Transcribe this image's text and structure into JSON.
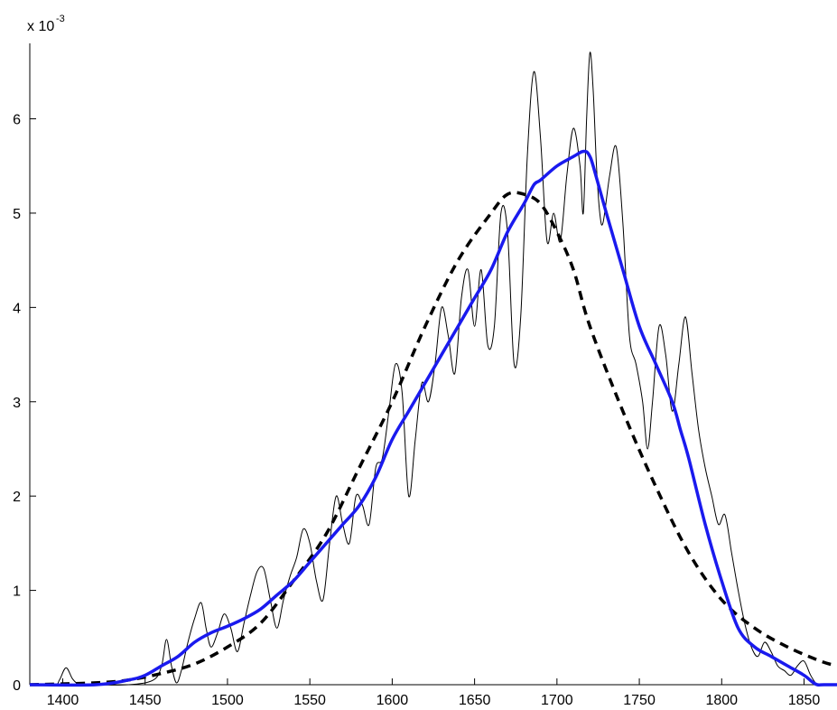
{
  "chart_data": {
    "type": "line",
    "title": "",
    "xlabel": "",
    "ylabel": "",
    "xlim": [
      1380,
      1870
    ],
    "ylim": [
      0,
      0.0068
    ],
    "y_exponent_label": {
      "base": "x 10",
      "exponent": "-3"
    },
    "x_ticks": [
      1400,
      1450,
      1500,
      1550,
      1600,
      1650,
      1700,
      1750,
      1800,
      1850
    ],
    "x_tick_labels": [
      "1400",
      "1450",
      "1500",
      "1550",
      "1600",
      "1650",
      "1700",
      "1750",
      "1800",
      "1850"
    ],
    "y_ticks": [
      0,
      0.001,
      0.002,
      0.003,
      0.004,
      0.005,
      0.006
    ],
    "y_tick_labels": [
      "0",
      "1",
      "2",
      "3",
      "4",
      "5",
      "6"
    ],
    "grid": false,
    "legend": "none",
    "series": [
      {
        "style": "thin-solid",
        "color": "#000000",
        "x": [
          1380,
          1395,
          1398,
          1402,
          1406,
          1410,
          1415,
          1440,
          1455,
          1460,
          1463,
          1466,
          1469,
          1472,
          1476,
          1480,
          1484,
          1487,
          1490,
          1494,
          1498,
          1502,
          1506,
          1510,
          1514,
          1518,
          1522,
          1526,
          1530,
          1534,
          1538,
          1542,
          1546,
          1550,
          1554,
          1558,
          1562,
          1566,
          1570,
          1574,
          1578,
          1582,
          1586,
          1590,
          1594,
          1598,
          1602,
          1606,
          1610,
          1614,
          1618,
          1622,
          1626,
          1630,
          1634,
          1638,
          1642,
          1646,
          1650,
          1654,
          1658,
          1662,
          1666,
          1670,
          1674,
          1678,
          1682,
          1686,
          1690,
          1694,
          1698,
          1702,
          1706,
          1710,
          1714,
          1716,
          1718,
          1720,
          1722,
          1724,
          1726,
          1728,
          1732,
          1736,
          1740,
          1744,
          1748,
          1752,
          1755,
          1758,
          1762,
          1766,
          1770,
          1774,
          1778,
          1782,
          1786,
          1790,
          1794,
          1798,
          1802,
          1806,
          1810,
          1814,
          1818,
          1822,
          1826,
          1830,
          1834,
          1838,
          1842,
          1846,
          1850,
          1854,
          1858,
          1862,
          1870
        ],
        "y": [
          0,
          0,
          5e-05,
          0.00018,
          6e-05,
          0,
          0,
          0,
          5e-05,
          0.0002,
          0.00048,
          0.0002,
          2e-05,
          0.00015,
          0.00045,
          0.0007,
          0.00087,
          0.0006,
          0.0004,
          0.00055,
          0.00075,
          0.0006,
          0.00035,
          0.00065,
          0.00095,
          0.0012,
          0.00123,
          0.0009,
          0.0006,
          0.0009,
          0.00115,
          0.00135,
          0.00165,
          0.0015,
          0.0011,
          0.0009,
          0.0015,
          0.002,
          0.0017,
          0.0015,
          0.002,
          0.0019,
          0.0017,
          0.0023,
          0.0024,
          0.0029,
          0.0034,
          0.0031,
          0.002,
          0.0026,
          0.0032,
          0.003,
          0.0034,
          0.004,
          0.0037,
          0.0033,
          0.0041,
          0.0044,
          0.0038,
          0.0044,
          0.0036,
          0.0038,
          0.005,
          0.0048,
          0.0034,
          0.0039,
          0.0056,
          0.0065,
          0.0058,
          0.0047,
          0.005,
          0.0047,
          0.0054,
          0.0059,
          0.0055,
          0.005,
          0.006,
          0.0067,
          0.0063,
          0.0055,
          0.005,
          0.0049,
          0.0054,
          0.0057,
          0.0049,
          0.0037,
          0.0034,
          0.003,
          0.0025,
          0.003,
          0.0038,
          0.0035,
          0.0029,
          0.0034,
          0.0039,
          0.0033,
          0.0027,
          0.0023,
          0.002,
          0.0017,
          0.0018,
          0.0014,
          0.001,
          0.00065,
          0.0004,
          0.0003,
          0.00045,
          0.00035,
          0.0002,
          0.00015,
          0.0001,
          0.0002,
          0.00025,
          0.0001,
          0,
          0,
          0
        ]
      },
      {
        "style": "thick-solid",
        "color": "#1a1aee",
        "x": [
          1380,
          1420,
          1440,
          1450,
          1460,
          1470,
          1480,
          1490,
          1500,
          1510,
          1520,
          1530,
          1540,
          1550,
          1560,
          1570,
          1580,
          1590,
          1600,
          1610,
          1620,
          1630,
          1640,
          1650,
          1660,
          1670,
          1680,
          1686,
          1690,
          1700,
          1710,
          1715,
          1718,
          1720,
          1722,
          1730,
          1740,
          1750,
          1760,
          1770,
          1775,
          1780,
          1790,
          1800,
          1810,
          1820,
          1830,
          1840,
          1850,
          1855,
          1858,
          1862,
          1870
        ],
        "y": [
          0,
          0,
          5e-05,
          0.0001,
          0.0002,
          0.0003,
          0.00045,
          0.00055,
          0.00062,
          0.0007,
          0.0008,
          0.00095,
          0.0011,
          0.0013,
          0.0015,
          0.0017,
          0.0019,
          0.0022,
          0.0026,
          0.0029,
          0.0032,
          0.0035,
          0.0038,
          0.0041,
          0.0044,
          0.0048,
          0.0051,
          0.0053,
          0.00535,
          0.0055,
          0.0056,
          0.00565,
          0.00565,
          0.0056,
          0.0055,
          0.005,
          0.0044,
          0.0038,
          0.0034,
          0.003,
          0.0027,
          0.0024,
          0.0017,
          0.0011,
          0.0006,
          0.0004,
          0.0003,
          0.0002,
          0.0001,
          3e-05,
          0,
          0,
          0
        ]
      },
      {
        "style": "thick-dashed",
        "color": "#000000",
        "x": [
          1380,
          1420,
          1440,
          1460,
          1480,
          1500,
          1520,
          1540,
          1560,
          1580,
          1600,
          1620,
          1640,
          1660,
          1670,
          1680,
          1690,
          1700,
          1710,
          1720,
          1740,
          1760,
          1780,
          1800,
          1820,
          1840,
          1860,
          1870
        ],
        "y": [
          0,
          2e-05,
          5e-05,
          0.00012,
          0.00022,
          0.0004,
          0.00065,
          0.0011,
          0.0016,
          0.0023,
          0.003,
          0.0038,
          0.0045,
          0.005,
          0.0052,
          0.0052,
          0.0051,
          0.0048,
          0.0044,
          0.0038,
          0.0029,
          0.0021,
          0.0014,
          0.0009,
          0.0006,
          0.0004,
          0.00025,
          0.0002
        ]
      }
    ]
  }
}
